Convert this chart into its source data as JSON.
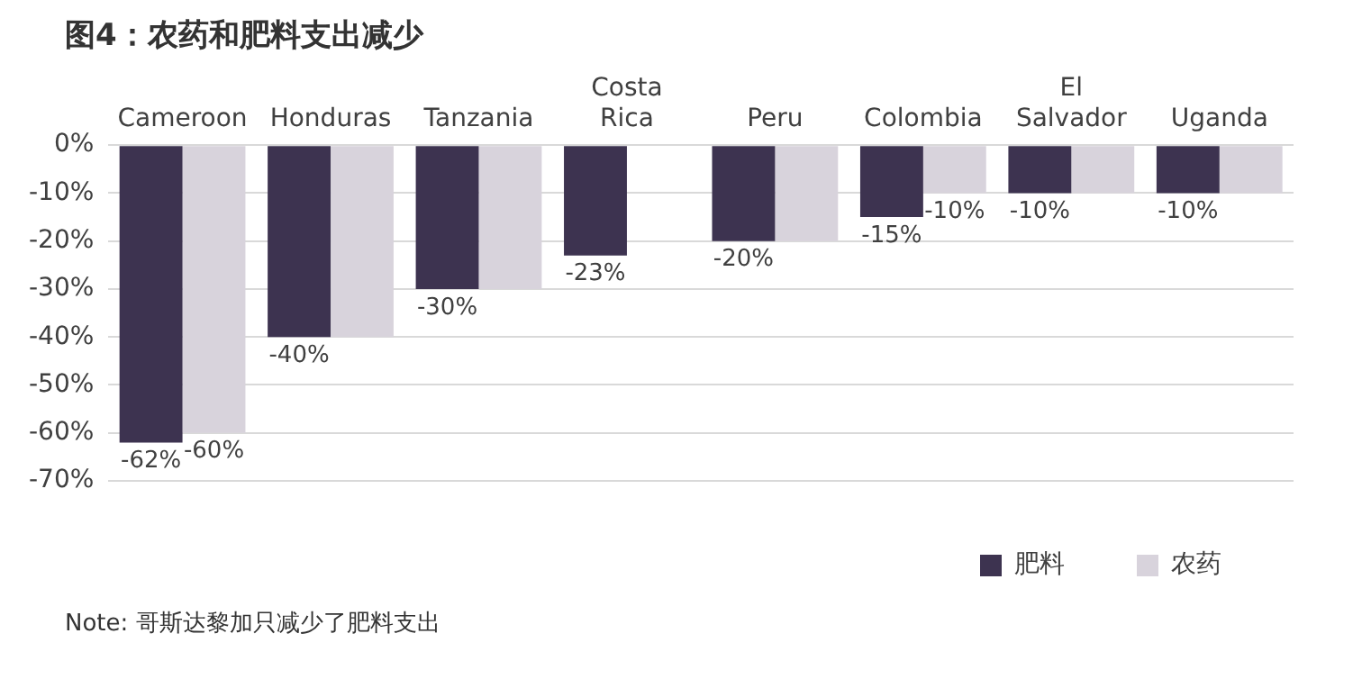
{
  "chart_data": {
    "type": "bar",
    "title": "图4：农药和肥料支出减少",
    "categories": [
      "Cameroon",
      "Honduras",
      "Tanzania",
      "Costa Rica",
      "Peru",
      "Colombia",
      "El Salvador",
      "Uganda"
    ],
    "series": [
      {
        "name": "肥料",
        "color": "#3d3350",
        "values": [
          -62,
          -40,
          -30,
          -23,
          -20,
          -15,
          -10,
          -10
        ],
        "value_labels": [
          "-62%",
          "-40%",
          "-30%",
          "-23%",
          "-20%",
          "-15%",
          "-10%",
          "-10%"
        ]
      },
      {
        "name": "农药",
        "color": "#d8d3dc",
        "values": [
          -60,
          -40,
          -30,
          null,
          -20,
          -10,
          -10,
          -10
        ],
        "value_labels": [
          "-60%",
          null,
          null,
          null,
          null,
          "-10%",
          null,
          null
        ]
      }
    ],
    "ylim": [
      -70,
      0
    ],
    "yticks": [
      {
        "value": 0,
        "label": "0%"
      },
      {
        "value": -10,
        "label": "-10%"
      },
      {
        "value": -20,
        "label": "-20%"
      },
      {
        "value": -30,
        "label": "-30%"
      },
      {
        "value": -40,
        "label": "-40%"
      },
      {
        "value": -50,
        "label": "-50%"
      },
      {
        "value": -60,
        "label": "-60%"
      },
      {
        "value": -70,
        "label": "-70%"
      }
    ],
    "grid": "y",
    "legend": "bottom right",
    "annotations": [
      "Note: 哥斯达黎加只减少了肥料支出"
    ]
  }
}
